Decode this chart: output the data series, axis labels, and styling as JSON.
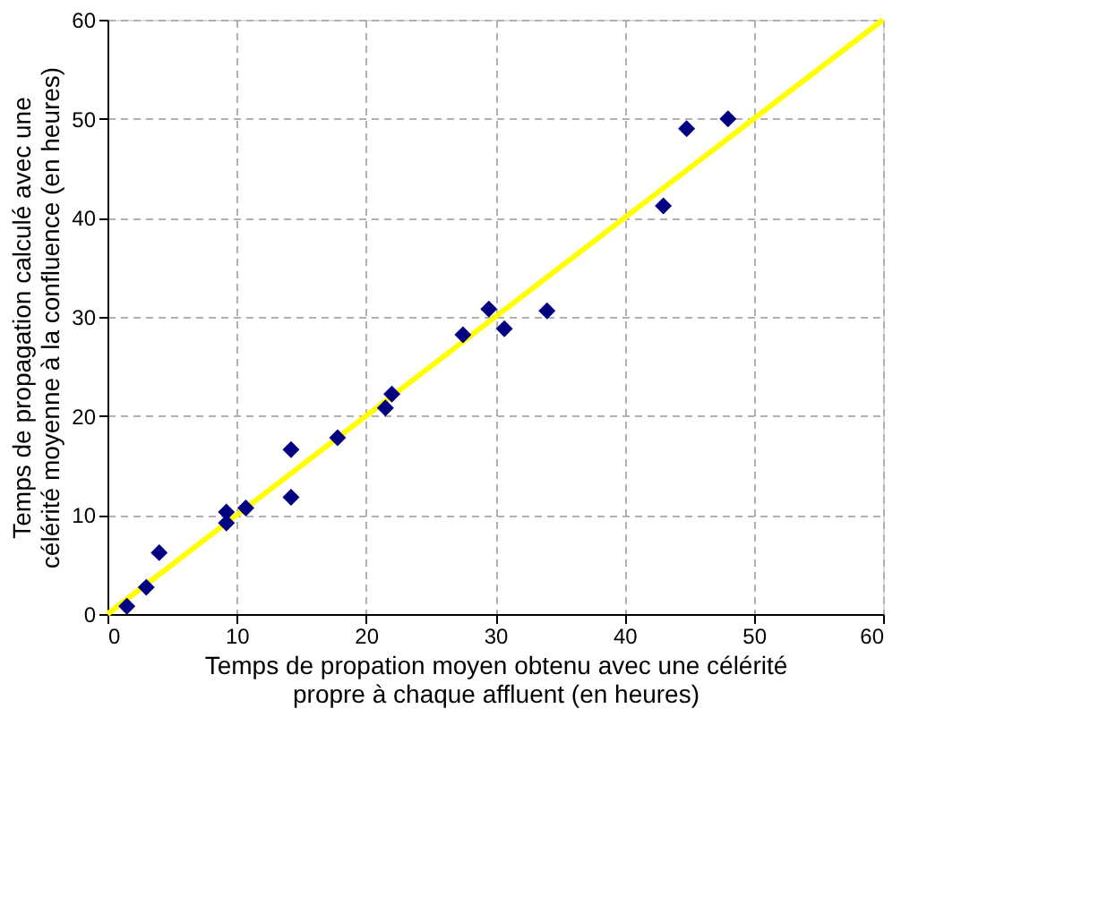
{
  "chart_data": {
    "type": "scatter",
    "xlabel": "Temps de propation moyen obtenu avec une célérité\npropre à chaque affluent (en heures)",
    "ylabel": "Temps de propagation calculé avec une\ncélérité moyenne à la confluence (en heures)",
    "xlim": [
      0,
      60
    ],
    "ylim": [
      0,
      60
    ],
    "xticks": [
      0,
      10,
      20,
      30,
      40,
      50,
      60
    ],
    "yticks": [
      0,
      10,
      20,
      30,
      40,
      50,
      60
    ],
    "grid": true,
    "marker": "diamond",
    "series": [
      {
        "color": "#000080",
        "x": [
          1.5,
          3,
          4,
          9.2,
          9.2,
          10.7,
          14.2,
          14.2,
          17.8,
          21.5,
          22,
          27.5,
          29.5,
          30.7,
          34,
          43,
          44.8,
          48
        ],
        "values": [
          0.8,
          2.7,
          6.2,
          9.2,
          10.3,
          10.7,
          11.8,
          16.6,
          17.8,
          20.8,
          22.2,
          28.2,
          30.8,
          28.8,
          30.6,
          41.2,
          49,
          50
        ]
      },
      {
        "type": "line",
        "color": "#ffff00",
        "x": [
          0,
          60
        ],
        "values": [
          0,
          60
        ],
        "marker": "none",
        "line_style": "solid"
      }
    ]
  }
}
